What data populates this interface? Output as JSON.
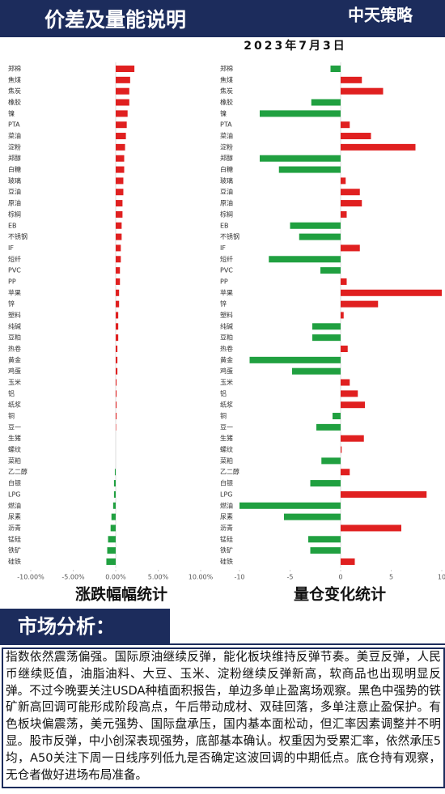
{
  "header": {
    "title": "价差及量能说明",
    "brand": "中天策略",
    "date": "2023年7月3日"
  },
  "chart_data": [
    {
      "type": "hbar",
      "title": "涨跌幅幅统计",
      "positive_color": "#e02020",
      "negative_color": "#20a040",
      "categories": [
        "郑棉",
        "焦煤",
        "焦炭",
        "橡胶",
        "镍",
        "PTA",
        "菜油",
        "淀粉",
        "郑醇",
        "白糖",
        "玻璃",
        "豆油",
        "原油",
        "棕榈",
        "EB",
        "不锈钢",
        "IF",
        "短纤",
        "PVC",
        "PP",
        "苹果",
        "锌",
        "塑料",
        "纯碱",
        "豆粕",
        "热卷",
        "黄金",
        "鸡蛋",
        "玉米",
        "铝",
        "纸浆",
        "铜",
        "豆一",
        "生猪",
        "螺纹",
        "菜粕",
        "乙二醇",
        "白银",
        "LPG",
        "燃油",
        "尿素",
        "沥青",
        "锰硅",
        "铁矿",
        "硅铁"
      ],
      "values": [
        2.2,
        1.7,
        1.6,
        1.6,
        1.4,
        1.3,
        1.2,
        1.1,
        1.0,
        1.0,
        0.9,
        0.9,
        0.8,
        0.8,
        0.7,
        0.7,
        0.6,
        0.6,
        0.5,
        0.5,
        0.4,
        0.4,
        0.3,
        0.3,
        0.3,
        0.2,
        0.2,
        0.2,
        0.1,
        0.1,
        0.1,
        0.1,
        0.05,
        0,
        0,
        0,
        -0.1,
        -0.2,
        -0.2,
        -0.3,
        -0.5,
        -0.6,
        -0.9,
        -1.0,
        -1.1
      ],
      "xlim": [
        -10,
        10
      ],
      "xticks": [
        {
          "value": -10,
          "label": "-10.00%"
        },
        {
          "value": -5,
          "label": "-5.00%"
        },
        {
          "value": 0,
          "label": "0.00%"
        },
        {
          "value": 5,
          "label": "5.00%"
        },
        {
          "value": 10,
          "label": "10.00%"
        }
      ]
    },
    {
      "type": "hbar",
      "title": "量仓变化统计",
      "positive_color": "#e02020",
      "negative_color": "#20a040",
      "categories": [
        "郑棉",
        "焦煤",
        "焦炭",
        "橡胶",
        "镍",
        "PTA",
        "菜油",
        "淀粉",
        "郑醇",
        "白糖",
        "玻璃",
        "豆油",
        "原油",
        "棕榈",
        "EB",
        "不锈钢",
        "IF",
        "短纤",
        "PVC",
        "PP",
        "苹果",
        "锌",
        "塑料",
        "纯碱",
        "豆粕",
        "热卷",
        "黄金",
        "鸡蛋",
        "玉米",
        "铝",
        "纸浆",
        "铜",
        "豆一",
        "生猪",
        "螺纹",
        "菜粕",
        "乙二醇",
        "白银",
        "LPG",
        "燃油",
        "尿素",
        "沥青",
        "锰硅",
        "铁矿",
        "硅铁"
      ],
      "values": [
        -1.0,
        2.1,
        4.2,
        -2.9,
        -8.0,
        0.9,
        3.0,
        7.4,
        -8.0,
        -6.1,
        0.5,
        1.9,
        2.1,
        0.6,
        -5.0,
        -4.1,
        1.9,
        -7.1,
        -2.0,
        0.6,
        10.0,
        3.7,
        0.3,
        -2.8,
        -2.8,
        0.7,
        -9.0,
        -4.8,
        0.9,
        1.7,
        2.4,
        -0.8,
        -2.4,
        2.3,
        0.1,
        -1.9,
        0.9,
        -3.0,
        8.5,
        -10.0,
        -5.6,
        6.0,
        -3.2,
        -3.0,
        1.4
      ],
      "xlim": [
        -10,
        10
      ],
      "xticks": [
        -10,
        -5,
        0,
        5,
        10
      ]
    }
  ],
  "market_analysis": {
    "heading": "市场分析：",
    "text": "指数依然震荡偏强。国际原油继续反弹，能化板块维持反弹节奏。美豆反弹，人民币继续贬值，油脂油料、大豆、玉米、淀粉继续反弹新高，软商品也出现明显反弹。不过今晚要关注USDA种植面积报告，单边多单止盈离场观察。黑色中强势的铁矿新高回调可能形成阶段高点，午后带动成材、双硅回落，多单注意止盈保护。有色板块偏震荡，美元强势、国际盘承压，国内基本面松动，但汇率因素调整并不明显。股市反弹，中小创深表现强势，底部基本确认。权重因为受累汇率，依然承压5均，A50关注下周一日线序列低九是否确定这波回调的中期低点。底仓持有观察，无仓者做好进场布局准备。"
  }
}
